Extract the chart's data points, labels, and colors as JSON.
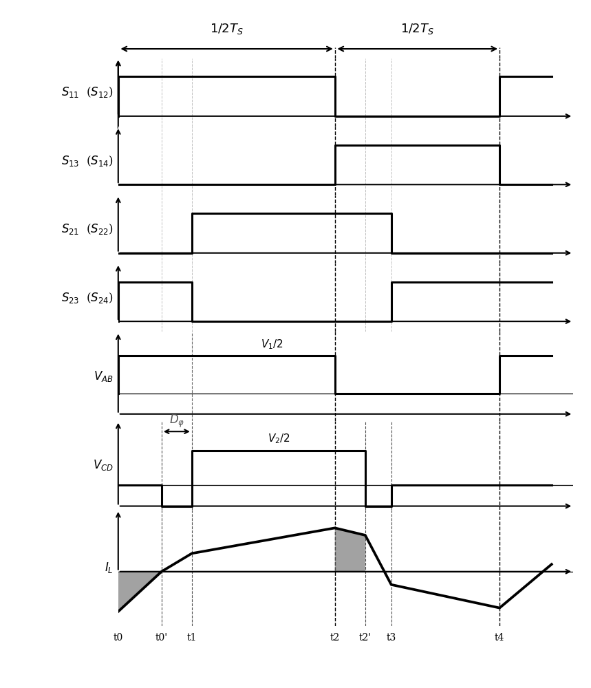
{
  "fig_width": 8.59,
  "fig_height": 10.0,
  "dpi": 100,
  "bg_color": "#ffffff",
  "line_color": "#000000",
  "line_width": 2.2,
  "ylabel_texts": [
    "$S_{11}$  ($S_{12}$)",
    "$S_{13}$  ($S_{14}$)",
    "$S_{21}$  ($S_{22}$)",
    "$S_{23}$  ($S_{24}$)",
    "$V_{AB}$",
    "$V_{CD}$",
    "$I_L$"
  ],
  "time_points": {
    "t0": 0.0,
    "t0p": 0.1,
    "t1": 0.17,
    "t2": 0.5,
    "t2p": 0.57,
    "t3": 0.63,
    "t4": 0.88,
    "tend": 1.0
  },
  "xlim": [
    0.0,
    1.05
  ],
  "tick_labels": [
    "t0",
    "t0'",
    "t1",
    "t2",
    "t2'",
    "t3",
    "t4"
  ],
  "tick_positions": [
    0.0,
    0.1,
    0.17,
    0.5,
    0.57,
    0.63,
    0.88
  ],
  "shade_color": "#707070"
}
